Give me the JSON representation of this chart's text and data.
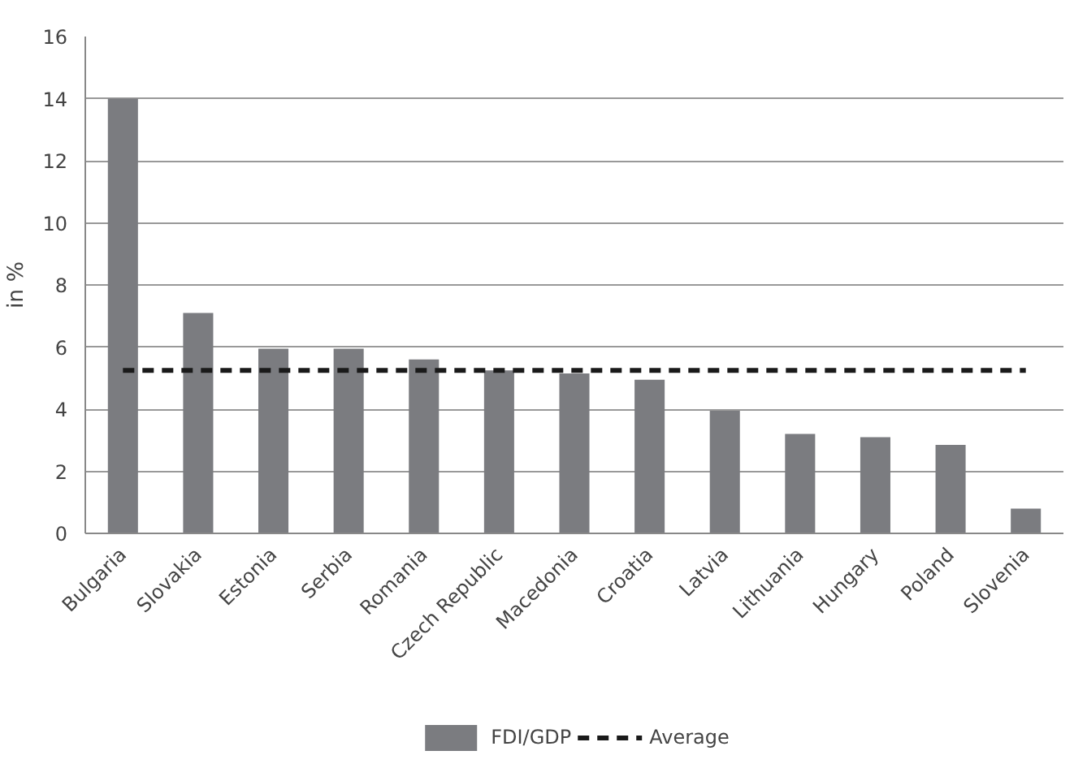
{
  "chart_data": {
    "type": "bar",
    "ylabel": "in %",
    "categories": [
      "Bulgaria",
      "Slovakia",
      "Estonia",
      "Serbia",
      "Romania",
      "Czech Republic",
      "Macedonia",
      "Croatia",
      "Latvia",
      "Lithuania",
      "Hungary",
      "Poland",
      "Slovenia"
    ],
    "series": [
      {
        "name": "FDI/GDP",
        "color": "#7b7c80",
        "values": [
          14.0,
          7.1,
          5.95,
          5.95,
          5.6,
          5.25,
          5.15,
          4.95,
          3.95,
          3.2,
          3.1,
          2.85,
          0.8
        ]
      },
      {
        "name": "Average",
        "type": "line",
        "line_style": "dashed",
        "color": "#1a1a1a",
        "values": [
          5.25,
          5.25,
          5.25,
          5.25,
          5.25,
          5.25,
          5.25,
          5.25,
          5.25,
          5.25,
          5.25,
          5.25,
          5.25
        ]
      }
    ],
    "ylim": [
      0,
      16
    ],
    "yticks": [
      0,
      2,
      4,
      6,
      8,
      10,
      12,
      14,
      16
    ],
    "grid": "y",
    "legend": "bottom"
  }
}
